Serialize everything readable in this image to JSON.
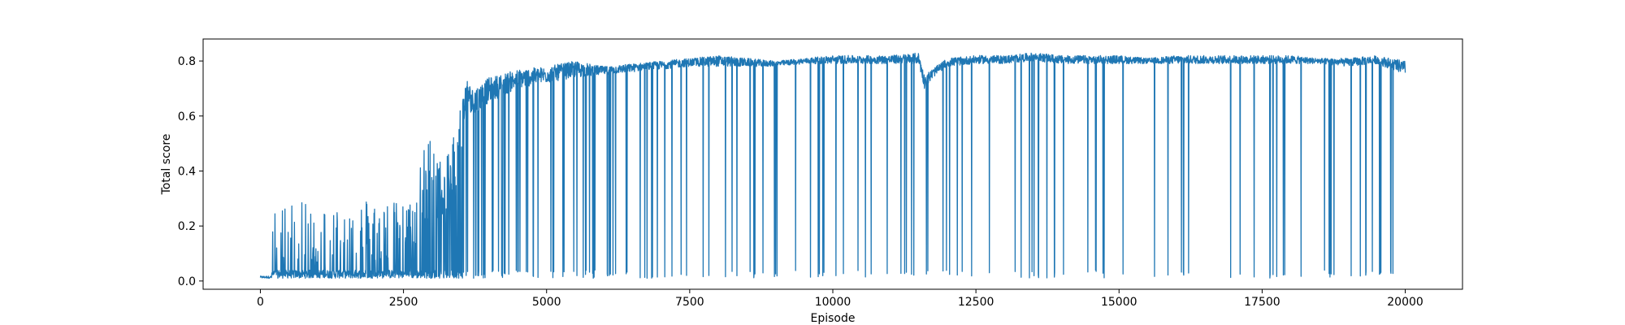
{
  "chart_data": {
    "type": "line",
    "title": "",
    "xlabel": "Episode",
    "ylabel": "Total score",
    "xlim": [
      -1000,
      21000
    ],
    "ylim": [
      -0.03,
      0.88
    ],
    "xticks": [
      0,
      2500,
      5000,
      7500,
      10000,
      12500,
      15000,
      17500,
      20000
    ],
    "xtick_labels": [
      "0",
      "2500",
      "5000",
      "7500",
      "10000",
      "12500",
      "15000",
      "17500",
      "20000"
    ],
    "yticks": [
      0.0,
      0.2,
      0.4,
      0.6,
      0.8
    ],
    "ytick_labels": [
      "0.0",
      "0.2",
      "0.4",
      "0.6",
      "0.8"
    ],
    "grid": false,
    "color": "#1f77b4",
    "series": [
      {
        "x": [
          0,
          200,
          210,
          500,
          1000,
          1500,
          2000,
          2500,
          2700,
          2800,
          3000,
          3200,
          3500,
          3600,
          3700,
          4000,
          4500,
          5000,
          5500,
          6000,
          6500,
          7000,
          7500,
          8000,
          8500,
          9000,
          9500,
          10000,
          10500,
          11000,
          11500,
          11600,
          11800,
          12000,
          12500,
          13000,
          13500,
          14000,
          14500,
          15000,
          15500,
          16000,
          16500,
          17000,
          17500,
          18000,
          18500,
          19000,
          19500,
          20000
        ],
        "y_max": [
          0.02,
          0.02,
          0.25,
          0.3,
          0.27,
          0.3,
          0.31,
          0.28,
          0.3,
          0.46,
          0.55,
          0.4,
          0.65,
          0.74,
          0.7,
          0.74,
          0.77,
          0.78,
          0.8,
          0.78,
          0.79,
          0.8,
          0.81,
          0.82,
          0.81,
          0.8,
          0.81,
          0.82,
          0.82,
          0.82,
          0.83,
          0.75,
          0.78,
          0.81,
          0.82,
          0.82,
          0.83,
          0.82,
          0.82,
          0.82,
          0.81,
          0.82,
          0.82,
          0.82,
          0.82,
          0.82,
          0.81,
          0.81,
          0.82,
          0.8
        ],
        "y_min": [
          0.01,
          0.01,
          0.01,
          0.01,
          0.01,
          0.01,
          0.01,
          0.01,
          0.01,
          0.01,
          0.01,
          0.01,
          0.01,
          0.01,
          0.01,
          0.01,
          0.01,
          0.01,
          0.01,
          0.01,
          0.01,
          0.01,
          0.01,
          0.01,
          0.01,
          0.01,
          0.01,
          0.01,
          0.01,
          0.01,
          0.01,
          0.01,
          0.01,
          0.01,
          0.01,
          0.01,
          0.01,
          0.01,
          0.01,
          0.01,
          0.01,
          0.01,
          0.01,
          0.01,
          0.01,
          0.01,
          0.01,
          0.01,
          0.01,
          0.01
        ],
        "y_typical": [
          0.01,
          0.01,
          0.05,
          0.06,
          0.06,
          0.07,
          0.07,
          0.08,
          0.1,
          0.15,
          0.25,
          0.2,
          0.4,
          0.65,
          0.6,
          0.65,
          0.7,
          0.72,
          0.74,
          0.75,
          0.76,
          0.77,
          0.78,
          0.78,
          0.78,
          0.78,
          0.79,
          0.79,
          0.79,
          0.79,
          0.79,
          0.7,
          0.75,
          0.78,
          0.79,
          0.79,
          0.8,
          0.79,
          0.79,
          0.79,
          0.79,
          0.79,
          0.79,
          0.79,
          0.79,
          0.79,
          0.79,
          0.78,
          0.79,
          0.75
        ]
      }
    ]
  }
}
